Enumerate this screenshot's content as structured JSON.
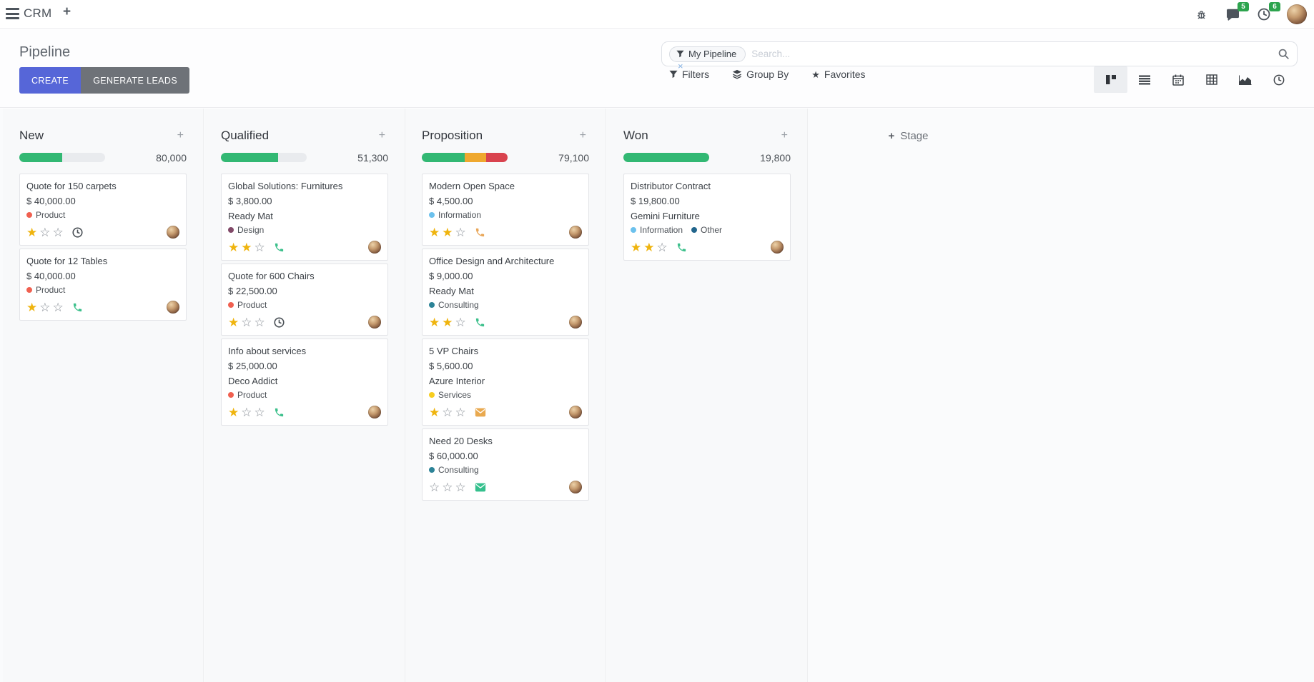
{
  "app": {
    "name": "CRM"
  },
  "topbar": {
    "message_badge": "5",
    "activity_badge": "6"
  },
  "ui": {
    "plus": "+",
    "star_filled": "★",
    "star_empty": "☆"
  },
  "control_panel": {
    "title": "Pipeline",
    "buttons": {
      "create": "CREATE",
      "generate_leads": "GENERATE LEADS"
    },
    "search": {
      "facet_label": "My Pipeline",
      "placeholder": "Search...",
      "remove_facet": "×"
    },
    "toolbar": {
      "filters": "Filters",
      "group_by": "Group By",
      "favorites": "Favorites"
    }
  },
  "views": {
    "active": "kanban",
    "items": [
      "kanban",
      "list",
      "calendar",
      "pivot",
      "graph",
      "activity"
    ]
  },
  "board": {
    "add_stage": "Stage",
    "columns": [
      {
        "name": "New",
        "amount": "80,000",
        "progress": [
          {
            "color": "#32b873",
            "pct": 50
          }
        ],
        "cards": [
          {
            "title": "Quote for 150 carpets",
            "amount": "$ 40,000.00",
            "tags": [
              {
                "label": "Product",
                "color": "#F06050"
              }
            ],
            "stars": 1,
            "activity": {
              "icon": "clock-icon",
              "color": "#4a5056"
            }
          },
          {
            "title": "Quote for 12 Tables",
            "amount": "$ 40,000.00",
            "tags": [
              {
                "label": "Product",
                "color": "#F06050"
              }
            ],
            "stars": 1,
            "activity": {
              "icon": "phone-icon",
              "color": "#3dc08c"
            }
          }
        ]
      },
      {
        "name": "Qualified",
        "amount": "51,300",
        "progress": [
          {
            "color": "#32b873",
            "pct": 67
          }
        ],
        "cards": [
          {
            "title": "Global Solutions: Furnitures",
            "amount": "$ 3,800.00",
            "client": "Ready Mat",
            "tags": [
              {
                "label": "Design",
                "color": "#814968"
              }
            ],
            "stars": 2,
            "activity": {
              "icon": "phone-icon",
              "color": "#3dc08c"
            }
          },
          {
            "title": "Quote for 600 Chairs",
            "amount": "$ 22,500.00",
            "tags": [
              {
                "label": "Product",
                "color": "#F06050"
              }
            ],
            "stars": 1,
            "activity": {
              "icon": "clock-icon",
              "color": "#4a5056"
            }
          },
          {
            "title": "Info about services",
            "amount": "$ 25,000.00",
            "client": "Deco Addict",
            "tags": [
              {
                "label": "Product",
                "color": "#F06050"
              }
            ],
            "stars": 1,
            "activity": {
              "icon": "phone-icon",
              "color": "#3dc08c"
            }
          }
        ]
      },
      {
        "name": "Proposition",
        "amount": "79,100",
        "progress": [
          {
            "color": "#32b873",
            "pct": 50
          },
          {
            "color": "#efa82e",
            "pct": 25
          },
          {
            "color": "#d9434e",
            "pct": 25
          }
        ],
        "cards": [
          {
            "title": "Modern Open Space",
            "amount": "$ 4,500.00",
            "tags": [
              {
                "label": "Information",
                "color": "#6CC1ED"
              }
            ],
            "stars": 2,
            "activity": {
              "icon": "phone-icon",
              "color": "#e9a75a"
            }
          },
          {
            "title": "Office Design and Architecture",
            "amount": "$ 9,000.00",
            "client": "Ready Mat",
            "tags": [
              {
                "label": "Consulting",
                "color": "#2C8397"
              }
            ],
            "stars": 2,
            "activity": {
              "icon": "phone-icon",
              "color": "#3dc08c"
            }
          },
          {
            "title": "5 VP Chairs",
            "amount": "$ 5,600.00",
            "client": "Azure Interior",
            "tags": [
              {
                "label": "Services",
                "color": "#F7CD1F"
              }
            ],
            "stars": 1,
            "activity": {
              "icon": "envelope-icon",
              "color": "#e9a94f"
            }
          },
          {
            "title": "Need 20 Desks",
            "amount": "$ 60,000.00",
            "tags": [
              {
                "label": "Consulting",
                "color": "#2C8397"
              }
            ],
            "stars": 0,
            "activity": {
              "icon": "envelope-icon",
              "color": "#35c08d"
            }
          }
        ]
      },
      {
        "name": "Won",
        "amount": "19,800",
        "progress": [
          {
            "color": "#32b873",
            "pct": 100
          }
        ],
        "cards": [
          {
            "title": "Distributor Contract",
            "amount": "$ 19,800.00",
            "client": "Gemini Furniture",
            "tags": [
              {
                "label": "Information",
                "color": "#6CC1ED"
              },
              {
                "label": "Other",
                "color": "#22658C"
              }
            ],
            "stars": 2,
            "activity": {
              "icon": "phone-icon",
              "color": "#3dc08c"
            }
          }
        ]
      }
    ]
  }
}
